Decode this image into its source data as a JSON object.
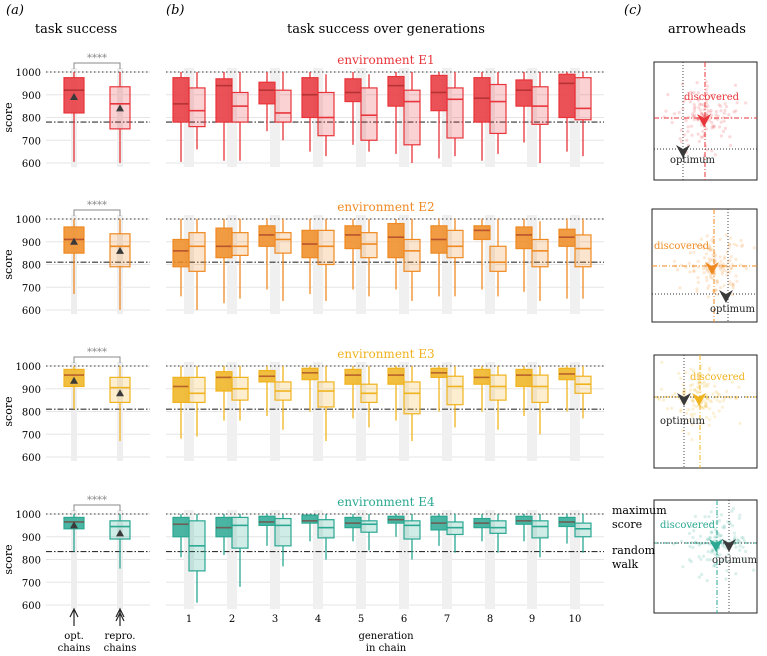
{
  "panel_labels": [
    "(a)",
    "(b)",
    "(c)"
  ],
  "headers": {
    "a": "task success",
    "b": "task success over generations",
    "c": "arrowheads"
  },
  "y_axis_label": "score",
  "significance": "****",
  "x_axis_label_line1": "generation",
  "x_axis_label_line2": "in chain",
  "chain_label_opt_1": "opt.",
  "chain_label_opt_2": "chains",
  "chain_label_repro_1": "repro.",
  "chain_label_repro_2": "chains",
  "legend_max_1": "maximum",
  "legend_max_2": "score",
  "legend_rand_1": "random",
  "legend_rand_2": "walk",
  "arrow_discovered": "discovered",
  "arrow_optimum": "optimum",
  "colors": {
    "E1": "#e8343a",
    "E2": "#ef8a22",
    "E3": "#f0b31e",
    "E4": "#2aa892",
    "marker": "#3a3a3a"
  },
  "chart_data": [
    {
      "type": "box",
      "title": "environment E1",
      "env": "E1",
      "ylabel": "score",
      "ylim": [
        600,
        1000
      ],
      "yticks": [
        600,
        700,
        800,
        900,
        1000
      ],
      "maximum_score": 1000,
      "random_walk": 780,
      "summary": {
        "opt": {
          "min": 605,
          "q1": 820,
          "median": 920,
          "q3": 975,
          "max": 1000,
          "mean": 890
        },
        "repro": {
          "min": 600,
          "q1": 750,
          "median": 860,
          "q3": 935,
          "max": 1000,
          "mean": 840
        }
      },
      "generations": [
        1,
        2,
        3,
        4,
        5,
        6,
        7,
        8,
        9,
        10
      ],
      "opt": [
        {
          "min": 605,
          "q1": 780,
          "median": 860,
          "q3": 975,
          "max": 1000
        },
        {
          "min": 610,
          "q1": 780,
          "median": 940,
          "q3": 970,
          "max": 1000
        },
        {
          "min": 740,
          "q1": 860,
          "median": 920,
          "q3": 955,
          "max": 1000
        },
        {
          "min": 650,
          "q1": 800,
          "median": 900,
          "q3": 975,
          "max": 1000
        },
        {
          "min": 680,
          "q1": 870,
          "median": 910,
          "q3": 970,
          "max": 1000
        },
        {
          "min": 640,
          "q1": 850,
          "median": 940,
          "q3": 980,
          "max": 1000
        },
        {
          "min": 620,
          "q1": 830,
          "median": 910,
          "q3": 985,
          "max": 1000
        },
        {
          "min": 610,
          "q1": 780,
          "median": 885,
          "q3": 975,
          "max": 1000
        },
        {
          "min": 690,
          "q1": 850,
          "median": 920,
          "q3": 965,
          "max": 1000
        },
        {
          "min": 650,
          "q1": 800,
          "median": 950,
          "q3": 990,
          "max": 1000
        }
      ],
      "repro": [
        {
          "min": 660,
          "q1": 760,
          "median": 830,
          "q3": 930,
          "max": 1000
        },
        {
          "min": 610,
          "q1": 780,
          "median": 850,
          "q3": 910,
          "max": 1000
        },
        {
          "min": 700,
          "q1": 780,
          "median": 820,
          "q3": 920,
          "max": 1000
        },
        {
          "min": 630,
          "q1": 720,
          "median": 800,
          "q3": 910,
          "max": 990
        },
        {
          "min": 650,
          "q1": 700,
          "median": 810,
          "q3": 930,
          "max": 990
        },
        {
          "min": 600,
          "q1": 680,
          "median": 870,
          "q3": 920,
          "max": 1000
        },
        {
          "min": 630,
          "q1": 710,
          "median": 880,
          "q3": 930,
          "max": 1000
        },
        {
          "min": 640,
          "q1": 730,
          "median": 870,
          "q3": 945,
          "max": 1000
        },
        {
          "min": 600,
          "q1": 770,
          "median": 850,
          "q3": 935,
          "max": 1000
        },
        {
          "min": 630,
          "q1": 790,
          "median": 840,
          "q3": 975,
          "max": 1000
        }
      ]
    },
    {
      "type": "box",
      "title": "environment E2",
      "env": "E2",
      "ylabel": "score",
      "ylim": [
        600,
        1000
      ],
      "yticks": [
        600,
        700,
        800,
        900,
        1000
      ],
      "maximum_score": 1000,
      "random_walk": 810,
      "summary": {
        "opt": {
          "min": 670,
          "q1": 850,
          "median": 910,
          "q3": 965,
          "max": 1000,
          "mean": 900
        },
        "repro": {
          "min": 600,
          "q1": 790,
          "median": 880,
          "q3": 935,
          "max": 1000,
          "mean": 860
        }
      },
      "generations": [
        1,
        2,
        3,
        4,
        5,
        6,
        7,
        8,
        9,
        10
      ],
      "opt": [
        {
          "min": 660,
          "q1": 790,
          "median": 860,
          "q3": 910,
          "max": 1000
        },
        {
          "min": 630,
          "q1": 830,
          "median": 880,
          "q3": 960,
          "max": 1000
        },
        {
          "min": 690,
          "q1": 880,
          "median": 930,
          "q3": 970,
          "max": 1000
        },
        {
          "min": 670,
          "q1": 830,
          "median": 890,
          "q3": 950,
          "max": 1000
        },
        {
          "min": 690,
          "q1": 870,
          "median": 930,
          "q3": 970,
          "max": 1000
        },
        {
          "min": 690,
          "q1": 830,
          "median": 920,
          "q3": 980,
          "max": 1000
        },
        {
          "min": 660,
          "q1": 850,
          "median": 910,
          "q3": 970,
          "max": 1000
        },
        {
          "min": 690,
          "q1": 910,
          "median": 950,
          "q3": 970,
          "max": 1000
        },
        {
          "min": 680,
          "q1": 870,
          "median": 930,
          "q3": 965,
          "max": 1000
        },
        {
          "min": 650,
          "q1": 880,
          "median": 920,
          "q3": 955,
          "max": 1000
        }
      ],
      "repro": [
        {
          "min": 600,
          "q1": 770,
          "median": 880,
          "q3": 940,
          "max": 1000
        },
        {
          "min": 650,
          "q1": 840,
          "median": 880,
          "q3": 940,
          "max": 1000
        },
        {
          "min": 640,
          "q1": 850,
          "median": 910,
          "q3": 940,
          "max": 1000
        },
        {
          "min": 640,
          "q1": 800,
          "median": 880,
          "q3": 950,
          "max": 1000
        },
        {
          "min": 660,
          "q1": 830,
          "median": 890,
          "q3": 940,
          "max": 1000
        },
        {
          "min": 640,
          "q1": 770,
          "median": 860,
          "q3": 910,
          "max": 1000
        },
        {
          "min": 660,
          "q1": 830,
          "median": 880,
          "q3": 950,
          "max": 1000
        },
        {
          "min": 660,
          "q1": 770,
          "median": 810,
          "q3": 880,
          "max": 1000
        },
        {
          "min": 640,
          "q1": 790,
          "median": 860,
          "q3": 910,
          "max": 990
        },
        {
          "min": 650,
          "q1": 790,
          "median": 870,
          "q3": 930,
          "max": 1000
        }
      ]
    },
    {
      "type": "box",
      "title": "environment E3",
      "env": "E3",
      "ylabel": "score",
      "ylim": [
        600,
        1000
      ],
      "yticks": [
        600,
        700,
        800,
        900,
        1000
      ],
      "maximum_score": 1000,
      "random_walk": 810,
      "summary": {
        "opt": {
          "min": 810,
          "q1": 910,
          "median": 960,
          "q3": 985,
          "max": 1000,
          "mean": 935
        },
        "repro": {
          "min": 670,
          "q1": 840,
          "median": 905,
          "q3": 950,
          "max": 1000,
          "mean": 880
        }
      },
      "generations": [
        1,
        2,
        3,
        4,
        5,
        6,
        7,
        8,
        9,
        10
      ],
      "opt": [
        {
          "min": 680,
          "q1": 840,
          "median": 910,
          "q3": 950,
          "max": 1000
        },
        {
          "min": 760,
          "q1": 890,
          "median": 950,
          "q3": 975,
          "max": 1000
        },
        {
          "min": 780,
          "q1": 930,
          "median": 955,
          "q3": 980,
          "max": 1000
        },
        {
          "min": 800,
          "q1": 940,
          "median": 970,
          "q3": 990,
          "max": 1000
        },
        {
          "min": 770,
          "q1": 920,
          "median": 960,
          "q3": 985,
          "max": 1000
        },
        {
          "min": 760,
          "q1": 920,
          "median": 960,
          "q3": 990,
          "max": 1000
        },
        {
          "min": 800,
          "q1": 950,
          "median": 970,
          "q3": 990,
          "max": 1000
        },
        {
          "min": 800,
          "q1": 920,
          "median": 950,
          "q3": 985,
          "max": 1000
        },
        {
          "min": 780,
          "q1": 910,
          "median": 960,
          "q3": 985,
          "max": 1000
        },
        {
          "min": 800,
          "q1": 940,
          "median": 965,
          "q3": 990,
          "max": 1000
        }
      ],
      "repro": [
        {
          "min": 690,
          "q1": 840,
          "median": 880,
          "q3": 950,
          "max": 1000
        },
        {
          "min": 760,
          "q1": 850,
          "median": 900,
          "q3": 950,
          "max": 1000
        },
        {
          "min": 720,
          "q1": 850,
          "median": 890,
          "q3": 930,
          "max": 1000
        },
        {
          "min": 670,
          "q1": 820,
          "median": 890,
          "q3": 930,
          "max": 1000
        },
        {
          "min": 730,
          "q1": 840,
          "median": 880,
          "q3": 920,
          "max": 1000
        },
        {
          "min": 670,
          "q1": 790,
          "median": 880,
          "q3": 930,
          "max": 1000
        },
        {
          "min": 730,
          "q1": 830,
          "median": 910,
          "q3": 955,
          "max": 1000
        },
        {
          "min": 720,
          "q1": 850,
          "median": 910,
          "q3": 960,
          "max": 1000
        },
        {
          "min": 700,
          "q1": 840,
          "median": 910,
          "q3": 960,
          "max": 1000
        },
        {
          "min": 770,
          "q1": 880,
          "median": 920,
          "q3": 955,
          "max": 1000
        }
      ]
    },
    {
      "type": "box",
      "title": "environment E4",
      "env": "E4",
      "ylabel": "score",
      "ylim": [
        600,
        1000
      ],
      "yticks": [
        600,
        700,
        800,
        900,
        1000
      ],
      "maximum_score": 1000,
      "random_walk": 835,
      "summary": {
        "opt": {
          "min": 835,
          "q1": 935,
          "median": 965,
          "q3": 985,
          "max": 1000,
          "mean": 950
        },
        "repro": {
          "min": 760,
          "q1": 890,
          "median": 945,
          "q3": 970,
          "max": 1000,
          "mean": 915
        }
      },
      "generations": [
        1,
        2,
        3,
        4,
        5,
        6,
        7,
        8,
        9,
        10
      ],
      "opt": [
        {
          "min": 810,
          "q1": 900,
          "median": 955,
          "q3": 985,
          "max": 1000
        },
        {
          "min": 820,
          "q1": 900,
          "median": 940,
          "q3": 985,
          "max": 1000
        },
        {
          "min": 860,
          "q1": 950,
          "median": 965,
          "q3": 990,
          "max": 1000
        },
        {
          "min": 880,
          "q1": 960,
          "median": 970,
          "q3": 995,
          "max": 1000
        },
        {
          "min": 880,
          "q1": 940,
          "median": 960,
          "q3": 985,
          "max": 1000
        },
        {
          "min": 900,
          "q1": 960,
          "median": 975,
          "q3": 990,
          "max": 1000
        },
        {
          "min": 860,
          "q1": 930,
          "median": 960,
          "q3": 990,
          "max": 1000
        },
        {
          "min": 880,
          "q1": 940,
          "median": 960,
          "q3": 980,
          "max": 1000
        },
        {
          "min": 880,
          "q1": 955,
          "median": 970,
          "q3": 990,
          "max": 1000
        },
        {
          "min": 870,
          "q1": 945,
          "median": 965,
          "q3": 985,
          "max": 1000
        }
      ],
      "repro": [
        {
          "min": 610,
          "q1": 750,
          "median": 860,
          "q3": 970,
          "max": 1000
        },
        {
          "min": 680,
          "q1": 850,
          "median": 950,
          "q3": 985,
          "max": 1000
        },
        {
          "min": 770,
          "q1": 860,
          "median": 950,
          "q3": 980,
          "max": 1000
        },
        {
          "min": 800,
          "q1": 895,
          "median": 940,
          "q3": 975,
          "max": 1000
        },
        {
          "min": 840,
          "q1": 920,
          "median": 955,
          "q3": 970,
          "max": 1000
        },
        {
          "min": 800,
          "q1": 890,
          "median": 950,
          "q3": 970,
          "max": 1000
        },
        {
          "min": 830,
          "q1": 910,
          "median": 940,
          "q3": 965,
          "max": 1000
        },
        {
          "min": 830,
          "q1": 915,
          "median": 940,
          "q3": 970,
          "max": 1000
        },
        {
          "min": 810,
          "q1": 895,
          "median": 945,
          "q3": 970,
          "max": 1000
        },
        {
          "min": 830,
          "q1": 900,
          "median": 935,
          "q3": 960,
          "max": 1000
        }
      ]
    }
  ]
}
